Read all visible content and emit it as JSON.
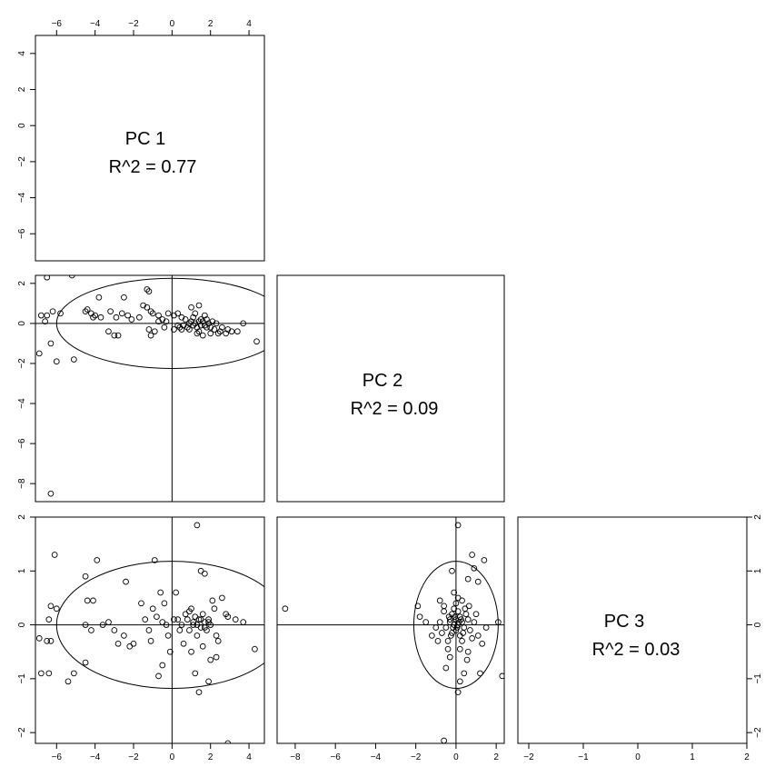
{
  "chart_data": {
    "type": "scatter",
    "layout": "lower-triangular pairs matrix",
    "variables": [
      "PC 1",
      "PC 2",
      "PC 3"
    ],
    "diagonal_panels": [
      {
        "name": "PC 1",
        "r2_label": "R^2 = 0.77"
      },
      {
        "name": "PC 2",
        "r2_label": "R^2 = 0.09"
      },
      {
        "name": "PC 3",
        "r2_label": "R^2 = 0.03"
      }
    ],
    "axes": {
      "pc1": {
        "range": [
          -7.1,
          4.8
        ],
        "ticks": [
          -6,
          -4,
          -2,
          0,
          2,
          4
        ]
      },
      "pc2": {
        "range": [
          -8.9,
          2.4
        ],
        "ticks": [
          -8,
          -6,
          -4,
          -2,
          0,
          2
        ]
      },
      "pc3": {
        "range": [
          -2.2,
          2.0
        ],
        "ticks": [
          -2,
          -1,
          0,
          1,
          2
        ]
      },
      "pc1_top_axis_range": [
        -7.1,
        4.8
      ],
      "pc1_top_axis_ticks": [
        -6,
        -4,
        -2,
        0,
        2,
        4
      ],
      "row1_left_axis_range": [
        -7.5,
        5.0
      ],
      "row1_left_axis_ticks": [
        -6,
        -4,
        -2,
        0,
        2,
        4
      ]
    },
    "panels": [
      {
        "id": "pc1-vs-pc2",
        "x_var": "PC 1",
        "y_var": "PC 2",
        "xlim": [
          -7.1,
          4.8
        ],
        "ylim": [
          -8.9,
          2.4
        ],
        "ellipse": {
          "cx": 0,
          "cy": 0,
          "rx": 6.0,
          "ry": 2.25
        },
        "points": [
          [
            -6.5,
            2.3
          ],
          [
            -5.2,
            2.4
          ],
          [
            -3.8,
            1.3
          ],
          [
            -2.5,
            1.3
          ],
          [
            -1.3,
            1.7
          ],
          [
            -1.2,
            1.6
          ],
          [
            -6.2,
            0.6
          ],
          [
            -6.8,
            0.4
          ],
          [
            -6.5,
            0.4
          ],
          [
            -6.6,
            0.1
          ],
          [
            -6.3,
            -1.0
          ],
          [
            -6.0,
            -1.9
          ],
          [
            -6.9,
            -1.5
          ],
          [
            -5.1,
            -1.8
          ],
          [
            -6.3,
            -8.5
          ],
          [
            -5.8,
            0.5
          ],
          [
            -4.4,
            0.7
          ],
          [
            -4.2,
            0.5
          ],
          [
            -4.5,
            0.6
          ],
          [
            -4.0,
            0.4
          ],
          [
            -4.1,
            0.3
          ],
          [
            -3.7,
            0.3
          ],
          [
            -3.2,
            0.6
          ],
          [
            -2.9,
            0.3
          ],
          [
            -2.6,
            0.5
          ],
          [
            -2.3,
            0.4
          ],
          [
            -2.1,
            0.2
          ],
          [
            -1.7,
            0.3
          ],
          [
            -1.5,
            0.9
          ],
          [
            -1.3,
            0.8
          ],
          [
            -1.1,
            0.6
          ],
          [
            -1.0,
            0.5
          ],
          [
            -0.7,
            0.4
          ],
          [
            -0.5,
            0.2
          ],
          [
            -0.3,
            0.1
          ],
          [
            -0.2,
            0.5
          ],
          [
            0.1,
            0.4
          ],
          [
            0.3,
            0.5
          ],
          [
            0.5,
            0.3
          ],
          [
            -3.3,
            -0.4
          ],
          [
            -3.0,
            -0.6
          ],
          [
            -2.8,
            -0.6
          ],
          [
            -1.2,
            -0.3
          ],
          [
            -1.1,
            -0.6
          ],
          [
            -0.9,
            -0.4
          ],
          [
            -0.4,
            -0.2
          ],
          [
            0.1,
            -0.3
          ],
          [
            0.3,
            -0.1
          ],
          [
            0.5,
            -0.3
          ],
          [
            0.6,
            -0.1
          ],
          [
            0.8,
            -0.2
          ],
          [
            0.9,
            -0.3
          ],
          [
            1.0,
            0.1
          ],
          [
            1.1,
            0.3
          ],
          [
            1.2,
            0.0
          ],
          [
            1.3,
            -0.2
          ],
          [
            1.4,
            -0.4
          ],
          [
            1.5,
            0.2
          ],
          [
            1.5,
            -0.1
          ],
          [
            1.6,
            0.1
          ],
          [
            1.7,
            -0.1
          ],
          [
            1.8,
            0.2
          ],
          [
            1.9,
            0.0
          ],
          [
            2.0,
            -0.2
          ],
          [
            2.1,
            0.1
          ],
          [
            2.2,
            -0.3
          ],
          [
            2.3,
            0.0
          ],
          [
            2.5,
            -0.4
          ],
          [
            2.6,
            -0.2
          ],
          [
            2.8,
            -0.5
          ],
          [
            2.9,
            -0.3
          ],
          [
            3.1,
            -0.4
          ],
          [
            3.4,
            -0.4
          ],
          [
            3.7,
            0.0
          ],
          [
            4.4,
            -0.9
          ],
          [
            1.0,
            0.8
          ],
          [
            1.4,
            0.9
          ],
          [
            1.7,
            0.4
          ],
          [
            1.2,
            0.5
          ],
          [
            0.7,
            0.2
          ],
          [
            1.3,
            -0.5
          ],
          [
            1.6,
            -0.6
          ],
          [
            2.0,
            -0.5
          ],
          [
            2.4,
            -0.5
          ],
          [
            0.9,
            0.0
          ],
          [
            1.1,
            -0.1
          ],
          [
            1.4,
            0.1
          ],
          [
            1.8,
            -0.2
          ],
          [
            0.4,
            -0.2
          ],
          [
            -0.7,
            0.1
          ]
        ]
      },
      {
        "id": "pc1-vs-pc3",
        "x_var": "PC 1",
        "y_var": "PC 3",
        "xlim": [
          -7.1,
          4.8
        ],
        "ylim": [
          -2.2,
          2.0
        ],
        "ellipse": {
          "cx": 0,
          "cy": 0,
          "rx": 6.0,
          "ry": 1.18
        },
        "points": [
          [
            -6.1,
            1.3
          ],
          [
            -3.9,
            1.2
          ],
          [
            -2.4,
            0.8
          ],
          [
            -0.9,
            1.2
          ],
          [
            1.3,
            1.85
          ],
          [
            1.5,
            1.0
          ],
          [
            1.7,
            0.95
          ],
          [
            -6.3,
            0.35
          ],
          [
            -6.0,
            0.3
          ],
          [
            -6.4,
            0.1
          ],
          [
            -6.9,
            -0.25
          ],
          [
            -6.5,
            -0.3
          ],
          [
            -6.3,
            -0.3
          ],
          [
            -6.8,
            -0.9
          ],
          [
            -6.4,
            -0.9
          ],
          [
            -5.4,
            -1.05
          ],
          [
            -5.1,
            -0.9
          ],
          [
            -4.5,
            -0.7
          ],
          [
            -4.4,
            0.45
          ],
          [
            -4.1,
            0.45
          ],
          [
            -4.5,
            0.9
          ],
          [
            -4.5,
            0.0
          ],
          [
            -4.2,
            -0.1
          ],
          [
            -3.6,
            0.0
          ],
          [
            -3.3,
            0.05
          ],
          [
            -3.0,
            -0.1
          ],
          [
            -2.8,
            -0.35
          ],
          [
            -2.5,
            -0.2
          ],
          [
            -2.2,
            -0.4
          ],
          [
            -2.0,
            -0.35
          ],
          [
            -1.6,
            0.4
          ],
          [
            -1.4,
            0.1
          ],
          [
            -1.2,
            -0.1
          ],
          [
            -1.1,
            -0.3
          ],
          [
            -1.0,
            0.3
          ],
          [
            -0.8,
            0.15
          ],
          [
            -0.6,
            0.6
          ],
          [
            -0.4,
            0.4
          ],
          [
            -0.3,
            0.0
          ],
          [
            -0.2,
            -0.2
          ],
          [
            -0.1,
            -0.5
          ],
          [
            0.2,
            0.6
          ],
          [
            0.3,
            0.1
          ],
          [
            0.4,
            -0.1
          ],
          [
            0.5,
            0.0
          ],
          [
            0.7,
            0.2
          ],
          [
            0.8,
            0.1
          ],
          [
            0.9,
            -0.1
          ],
          [
            1.0,
            0.3
          ],
          [
            1.1,
            0.0
          ],
          [
            1.2,
            0.15
          ],
          [
            1.3,
            -0.2
          ],
          [
            1.4,
            0.1
          ],
          [
            1.5,
            -0.05
          ],
          [
            1.6,
            0.2
          ],
          [
            1.7,
            0.05
          ],
          [
            1.8,
            -0.1
          ],
          [
            1.9,
            0.1
          ],
          [
            2.0,
            0.0
          ],
          [
            2.1,
            0.45
          ],
          [
            2.2,
            0.3
          ],
          [
            2.3,
            -0.2
          ],
          [
            2.6,
            0.5
          ],
          [
            2.8,
            0.2
          ],
          [
            2.9,
            0.15
          ],
          [
            2.9,
            -2.2
          ],
          [
            3.3,
            0.1
          ],
          [
            3.7,
            0.05
          ],
          [
            4.3,
            -0.45
          ],
          [
            1.2,
            -0.9
          ],
          [
            1.4,
            -1.25
          ],
          [
            1.9,
            -1.05
          ],
          [
            2.0,
            -0.65
          ],
          [
            2.3,
            -0.6
          ],
          [
            -0.5,
            -0.75
          ],
          [
            -0.7,
            -0.95
          ],
          [
            0.6,
            -0.35
          ],
          [
            1.0,
            -0.5
          ],
          [
            1.6,
            -0.4
          ],
          [
            2.4,
            -0.3
          ],
          [
            0.9,
            0.25
          ],
          [
            1.1,
            0.05
          ],
          [
            1.3,
            0.0
          ],
          [
            1.5,
            0.1
          ],
          [
            1.7,
            -0.05
          ],
          [
            1.9,
            0.05
          ],
          [
            0.1,
            0.1
          ],
          [
            -0.5,
            0.05
          ]
        ]
      },
      {
        "id": "pc2-vs-pc3",
        "x_var": "PC 2",
        "y_var": "PC 3",
        "xlim": [
          -8.9,
          2.4
        ],
        "ylim": [
          -2.2,
          2.0
        ],
        "ellipse": {
          "cx": 0,
          "cy": 0,
          "rx": 2.1,
          "ry": 1.18
        },
        "points": [
          [
            -8.5,
            0.3
          ],
          [
            0.1,
            1.85
          ],
          [
            0.8,
            1.3
          ],
          [
            1.4,
            1.2
          ],
          [
            0.9,
            1.05
          ],
          [
            -0.2,
            1.0
          ],
          [
            0.6,
            0.85
          ],
          [
            1.1,
            0.8
          ],
          [
            -0.6,
            0.35
          ],
          [
            -0.8,
            0.45
          ],
          [
            -1.9,
            0.35
          ],
          [
            -1.8,
            0.15
          ],
          [
            -1.5,
            0.05
          ],
          [
            -1.2,
            -0.2
          ],
          [
            -0.9,
            -0.3
          ],
          [
            -0.7,
            -0.15
          ],
          [
            -0.5,
            -0.05
          ],
          [
            -0.3,
            0.1
          ],
          [
            -0.2,
            0.2
          ],
          [
            -0.1,
            0.3
          ],
          [
            0.0,
            0.4
          ],
          [
            0.1,
            0.25
          ],
          [
            0.2,
            0.15
          ],
          [
            0.3,
            0.05
          ],
          [
            0.4,
            -0.05
          ],
          [
            0.5,
            0.2
          ],
          [
            0.6,
            0.1
          ],
          [
            0.7,
            -0.1
          ],
          [
            0.9,
            0.05
          ],
          [
            1.1,
            -0.2
          ],
          [
            1.3,
            -0.35
          ],
          [
            1.5,
            -0.05
          ],
          [
            2.1,
            0.05
          ],
          [
            2.3,
            -0.95
          ],
          [
            1.2,
            -0.9
          ],
          [
            0.6,
            -0.5
          ],
          [
            0.4,
            -0.9
          ],
          [
            0.2,
            -1.05
          ],
          [
            0.1,
            -1.25
          ],
          [
            -0.3,
            -0.6
          ],
          [
            -0.5,
            -0.8
          ],
          [
            -0.6,
            -2.15
          ],
          [
            -0.4,
            -0.3
          ],
          [
            -0.2,
            -0.15
          ],
          [
            -0.1,
            0.0
          ],
          [
            0.0,
            -0.1
          ],
          [
            0.1,
            0.0
          ],
          [
            0.2,
            -0.2
          ],
          [
            0.3,
            -0.3
          ],
          [
            -0.3,
            0.05
          ],
          [
            0.0,
            0.1
          ],
          [
            0.15,
            0.05
          ],
          [
            -0.15,
            -0.05
          ],
          [
            0.05,
            -0.05
          ],
          [
            -0.05,
            0.15
          ],
          [
            0.25,
            0.1
          ],
          [
            -0.25,
            -0.2
          ],
          [
            0.35,
            -0.15
          ],
          [
            -0.35,
            0.15
          ],
          [
            0.45,
            0.3
          ],
          [
            0.1,
            0.5
          ],
          [
            -0.1,
            0.6
          ],
          [
            0.3,
            0.45
          ],
          [
            0.2,
            -0.45
          ],
          [
            -0.4,
            -0.45
          ],
          [
            0.8,
            -0.25
          ],
          [
            -0.8,
            0.05
          ],
          [
            1.0,
            0.2
          ],
          [
            -1.0,
            -0.05
          ],
          [
            0.55,
            -0.65
          ],
          [
            -0.6,
            0.25
          ],
          [
            0.65,
            0.35
          ]
        ]
      }
    ]
  }
}
